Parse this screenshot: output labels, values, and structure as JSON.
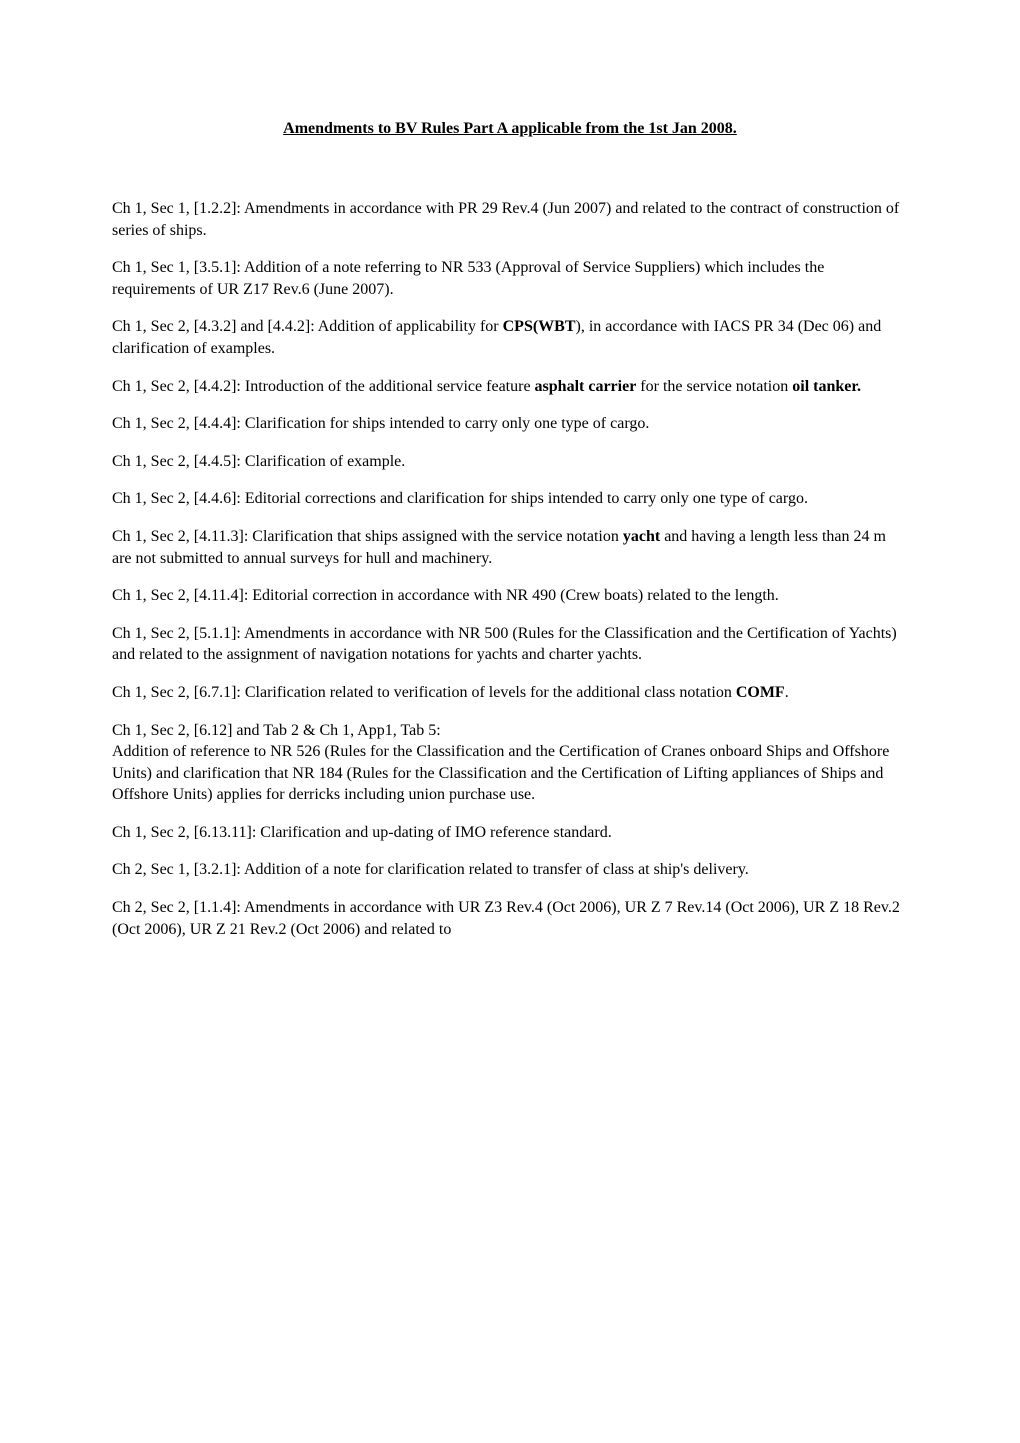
{
  "title": "Amendments to BV Rules Part A  applicable from the 1st Jan 2008.",
  "paragraphs": [
    {
      "segments": [
        {
          "text": "Ch 1, Sec 1, [1.2.2]: Amendments in accordance with PR 29 Rev.4 (Jun 2007) and related to the contract of construction of series of ships.",
          "bold": false
        }
      ]
    },
    {
      "segments": [
        {
          "text": "Ch 1, Sec 1, [3.5.1]: Addition of a note referring to NR 533 (Approval of Service Suppliers) which includes the requirements of UR Z17 Rev.6 (June 2007).",
          "bold": false
        }
      ]
    },
    {
      "segments": [
        {
          "text": "Ch 1, Sec 2, [4.3.2] and [4.4.2]: Addition of applicability for ",
          "bold": false
        },
        {
          "text": "CPS(WBT",
          "bold": true
        },
        {
          "text": "), in accordance with IACS PR 34 (Dec 06) and clarification of examples.",
          "bold": false
        }
      ]
    },
    {
      "segments": [
        {
          "text": "Ch 1, Sec 2, [4.4.2]: Introduction of the additional service feature ",
          "bold": false
        },
        {
          "text": "asphalt carrier",
          "bold": true
        },
        {
          "text": " for the service notation ",
          "bold": false
        },
        {
          "text": "oil tanker.",
          "bold": true
        }
      ]
    },
    {
      "segments": [
        {
          "text": "Ch 1, Sec 2, [4.4.4]: Clarification for ships intended to carry only one type of cargo.",
          "bold": false
        }
      ]
    },
    {
      "segments": [
        {
          "text": "Ch 1, Sec 2, [4.4.5]: Clarification of example.",
          "bold": false
        }
      ]
    },
    {
      "segments": [
        {
          "text": "Ch 1, Sec 2, [4.4.6]: Editorial corrections and clarification for ships intended to carry only one type of cargo.",
          "bold": false
        }
      ]
    },
    {
      "segments": [
        {
          "text": "Ch 1, Sec 2, [4.11.3]: Clarification that ships assigned with the service notation ",
          "bold": false
        },
        {
          "text": "yacht",
          "bold": true
        },
        {
          "text": " and having a length less than 24 m are not submitted to annual surveys for hull and machinery.",
          "bold": false
        }
      ]
    },
    {
      "segments": [
        {
          "text": "Ch 1, Sec 2, [4.11.4]: Editorial correction in accordance with NR 490 (Crew boats) related to the length.",
          "bold": false
        }
      ]
    },
    {
      "segments": [
        {
          "text": "Ch 1, Sec 2, [5.1.1]: Amendments in accordance with NR 500 (Rules for the Classification and the Certification of Yachts) and related to the assignment of navigation notations for yachts and charter yachts.",
          "bold": false
        }
      ]
    },
    {
      "segments": [
        {
          "text": "Ch 1, Sec 2, [6.7.1]: Clarification related to verification of levels for the additional class notation ",
          "bold": false
        },
        {
          "text": "COMF",
          "bold": true
        },
        {
          "text": ".",
          "bold": false
        }
      ]
    },
    {
      "segments": [
        {
          "text": "Ch 1, Sec 2, [6.12] and Tab 2 & Ch 1, App1, Tab 5:\nAddition of reference to NR 526 (Rules for the Classification and the Certification of Cranes onboard Ships and Offshore Units) and clarification that NR 184 (Rules for the Classification and the Certification of Lifting appliances of Ships and Offshore Units) applies for derricks including union purchase use.",
          "bold": false
        }
      ]
    },
    {
      "segments": [
        {
          "text": "Ch 1, Sec 2, [6.13.11]: Clarification and up-dating of IMO reference standard.",
          "bold": false
        }
      ]
    },
    {
      "segments": [
        {
          "text": "Ch 2, Sec 1, [3.2.1]: Addition of a note for clarification related to transfer of class at ship's delivery.",
          "bold": false
        }
      ]
    },
    {
      "segments": [
        {
          "text": "Ch 2, Sec 2, [1.1.4]: Amendments in accordance with UR Z3 Rev.4 (Oct 2006), UR Z 7 Rev.14 (Oct 2006), UR Z 18 Rev.2 (Oct 2006), UR Z 21 Rev.2 (Oct 2006) and related to",
          "bold": false
        }
      ]
    }
  ]
}
